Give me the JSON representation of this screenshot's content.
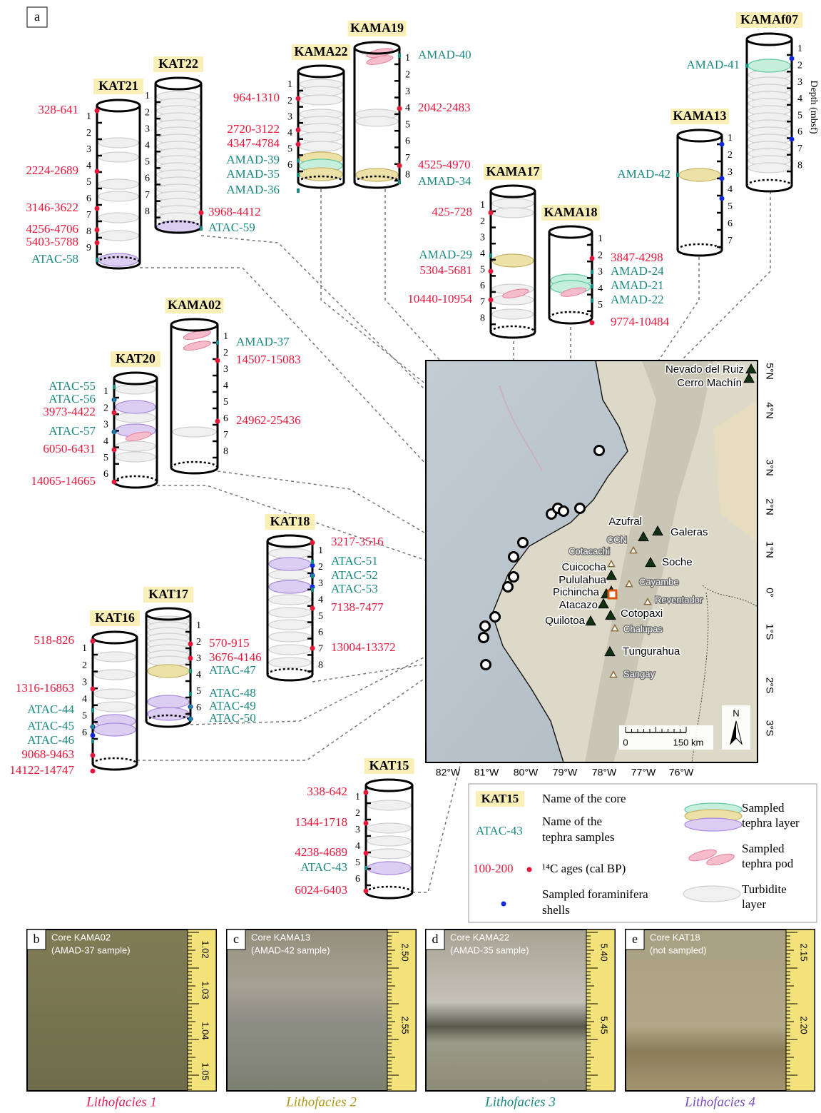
{
  "panel_label": "a",
  "depth_axis_label": "Depth (mbsf)",
  "cores": [
    {
      "name": "KAT21",
      "depths": [
        1,
        2,
        3,
        4,
        5,
        6,
        7,
        8,
        9
      ],
      "ages": [
        "328-641",
        "2224-2689",
        "3146-3622",
        "4256-4706",
        "5403-5788"
      ],
      "samples": [
        "ATAC-58"
      ]
    },
    {
      "name": "KAT22",
      "depths": [
        1,
        2,
        3,
        4,
        5,
        6,
        7,
        8
      ],
      "ages": [
        "3968-4412"
      ],
      "samples": [
        "ATAC-59"
      ]
    },
    {
      "name": "KAMA22",
      "depths": [
        1,
        2,
        3,
        4,
        5,
        6
      ],
      "ages": [
        "964-1310",
        "2720-3122",
        "4347-4784"
      ],
      "samples": [
        "AMAD-39",
        "AMAD-35",
        "AMAD-36"
      ]
    },
    {
      "name": "KAMA19",
      "depths": [
        1,
        2,
        3,
        4,
        5,
        6,
        7,
        8
      ],
      "ages": [
        "2042-2483",
        "4525-4970"
      ],
      "samples": [
        "AMAD-40",
        "AMAD-34"
      ]
    },
    {
      "name": "KAMA17",
      "depths": [
        1,
        2,
        3,
        4,
        5,
        6,
        7,
        8
      ],
      "ages": [
        "425-728",
        "5304-5681",
        "10440-10954"
      ],
      "samples": [
        "AMAD-29"
      ]
    },
    {
      "name": "KAMA18",
      "depths": [
        1,
        2,
        3,
        4,
        5
      ],
      "ages": [
        "3847-4298",
        "9774-10484"
      ],
      "samples": [
        "AMAD-24",
        "AMAD-21",
        "AMAD-22"
      ]
    },
    {
      "name": "KAMA13",
      "depths": [
        1,
        2,
        3,
        4,
        5,
        6,
        7
      ],
      "ages": [],
      "samples": [
        "AMAD-42"
      ]
    },
    {
      "name": "KAMAf07",
      "depths": [
        1,
        2,
        3,
        4,
        5,
        6,
        7,
        8
      ],
      "ages": [],
      "samples": [
        "AMAD-41"
      ]
    },
    {
      "name": "KAMA02",
      "depths": [
        1,
        2,
        3,
        4,
        5,
        6,
        7,
        8
      ],
      "ages": [
        "14507-15083",
        "24962-25436"
      ],
      "samples": [
        "AMAD-37"
      ]
    },
    {
      "name": "KAT20",
      "depths": [
        1,
        2,
        3,
        4,
        5,
        6
      ],
      "ages": [
        "3973-4422",
        "6050-6431",
        "14065-14665"
      ],
      "samples": [
        "ATAC-55",
        "ATAC-56",
        "ATAC-57"
      ]
    },
    {
      "name": "KAT18",
      "depths": [
        1,
        2,
        3,
        4,
        5,
        6,
        7,
        8
      ],
      "ages": [
        "3217-3516",
        "7138-7477",
        "13004-13372"
      ],
      "samples": [
        "ATAC-51",
        "ATAC-52",
        "ATAC-53"
      ]
    },
    {
      "name": "KAT17",
      "depths": [
        1,
        2,
        3,
        4,
        5,
        6
      ],
      "ages": [
        "570-915",
        "3676-4146"
      ],
      "samples": [
        "ATAC-47",
        "ATAC-48",
        "ATAC-49",
        "ATAC-50"
      ]
    },
    {
      "name": "KAT16",
      "depths": [
        1,
        2,
        3,
        4,
        5,
        6
      ],
      "ages": [
        "518-826",
        "1316-16863",
        "9068-9463",
        "14122-14747"
      ],
      "samples": [
        "ATAC-44",
        "ATAC-45",
        "ATAC-46"
      ]
    },
    {
      "name": "KAT15",
      "depths": [
        1,
        2,
        3,
        4,
        5,
        6
      ],
      "ages": [
        "338-642",
        "1344-1718",
        "4238-4689",
        "6024-6403"
      ],
      "samples": [
        "ATAC-43"
      ]
    }
  ],
  "map": {
    "lon_ticks": [
      "82°W",
      "81°W",
      "80°W",
      "79°W",
      "78°W",
      "77°W",
      "76°W"
    ],
    "lat_ticks": [
      "5°N",
      "4°N",
      "3°N",
      "2°N",
      "1°N",
      "0°",
      "1°S",
      "2°S",
      "3°S"
    ],
    "volcanoes": [
      "Nevado del Ruiz",
      "Cerro Machín",
      "Azufral",
      "Galeras",
      "Soche",
      "Cuicocha",
      "Pululahua",
      "Pichincha",
      "Atacazo",
      "Quilotoa",
      "Cotopaxi",
      "Tungurahua"
    ],
    "other_volcanoes": [
      "CCN",
      "Cotacachi",
      "Cayambe",
      "Reventador",
      "Chalupas",
      "Sangay"
    ],
    "scale_labels": [
      "0",
      "150 km"
    ],
    "north": "N"
  },
  "legend": {
    "core_example": "KAT15",
    "core_text": [
      "Name of the core"
    ],
    "sample_example": "ATAC-43",
    "sample_text": [
      "Name of the",
      "tephra samples"
    ],
    "age_example": "100-200",
    "age_text": [
      "¹⁴C ages (cal BP)"
    ],
    "foram_text": [
      "Sampled foraminifera",
      "shells"
    ],
    "layer_text": [
      "Sampled",
      "tephra layer"
    ],
    "pod_text": [
      "Sampled",
      "tephra pod"
    ],
    "turbidite_text": [
      "Turbidite",
      "layer"
    ]
  },
  "photos": [
    {
      "label": "b",
      "title": "Core KAMA02",
      "subtitle": "(AMAD-37 sample)",
      "scale": [
        "1.02",
        "1.03",
        "1.04",
        "1.05"
      ],
      "caption": "Lithofacies 1"
    },
    {
      "label": "c",
      "title": "Core KAMA13",
      "subtitle": "(AMAD-42 sample)",
      "scale": [
        "2.50",
        "2.55"
      ],
      "caption": "Lithofacies 2"
    },
    {
      "label": "d",
      "title": "Core KAMA22",
      "subtitle": "(AMAD-35 sample)",
      "scale": [
        "5.40",
        "5.45"
      ],
      "caption": "Lithofacies 3"
    },
    {
      "label": "e",
      "title": "Core KAT18",
      "subtitle": "(not sampled)",
      "scale": [
        "2.15",
        "2.20"
      ],
      "caption": "Lithofacies 4"
    }
  ]
}
